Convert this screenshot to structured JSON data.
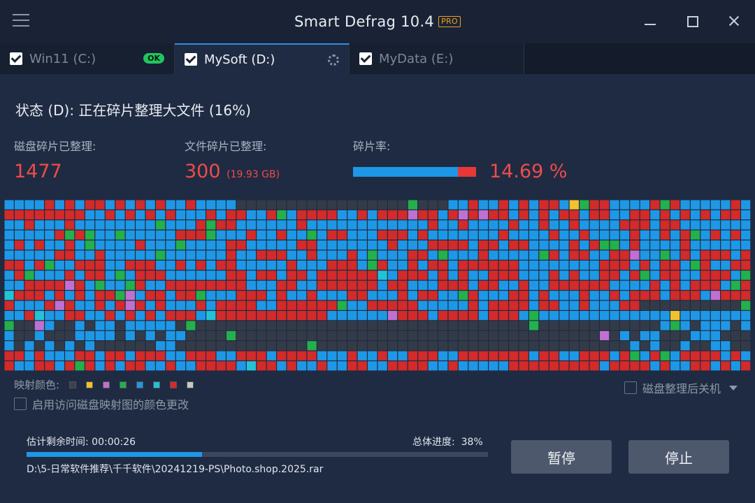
{
  "app": {
    "title": "Smart Defrag 10.4",
    "badge": "PRO"
  },
  "tabs": [
    {
      "label": "Win11 (C:)",
      "checked": true,
      "status": "OK"
    },
    {
      "label": "MySoft (D:)",
      "checked": true,
      "status": "busy"
    },
    {
      "label": "MyData (E:)",
      "checked": true,
      "status": ""
    }
  ],
  "status_line": "状态 (D): 正在碎片整理大文件 (16%)",
  "stats": {
    "disk_frags_label": "磁盘碎片已整理:",
    "disk_frags_value": "1477",
    "file_frags_label": "文件碎片已整理:",
    "file_frags_value": "300",
    "file_frags_size": "(19.93 GB)",
    "frag_rate_label": "碎片率:",
    "frag_rate_value": "14.69 %",
    "frag_bar_fraction": 0.85
  },
  "legend": {
    "label": "映射颜色:",
    "colors": [
      "#3a4150",
      "#f2c12e",
      "#c070d0",
      "#22b14c",
      "#1e98e6",
      "#22c3d6",
      "#d32a2a",
      "#c8c8c8"
    ]
  },
  "options": {
    "shutdown_label": "磁盘整理后关机",
    "color_change_label": "启用访问磁盘映射图的颜色更改"
  },
  "progress": {
    "eta_label": "估计剩余时间:",
    "eta_value": "00:00:26",
    "total_label": "总体进度:",
    "total_value": "38%",
    "total_fraction": 0.38,
    "current_file": "D:\\5-日常软件推荐\\千千软件\\20241219-PS\\Photo.shop.2025.rar"
  },
  "buttons": {
    "pause": "暂停",
    "stop": "停止"
  }
}
